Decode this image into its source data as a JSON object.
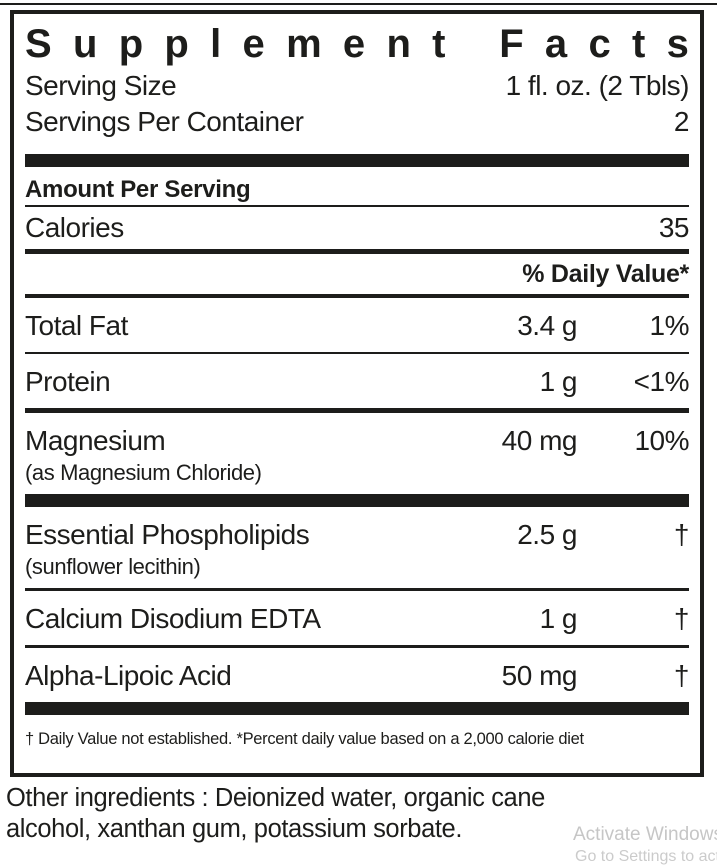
{
  "label": {
    "title": "Supplement Facts",
    "serving_size_label": "Serving Size",
    "serving_size_value": "1 fl. oz. (2 Tbls)",
    "servings_per_container_label": "Servings Per Container",
    "servings_per_container_value": "2",
    "amount_per_serving_header": "Amount Per Serving",
    "calories_label": "Calories",
    "calories_value": "35",
    "daily_value_header": "% Daily Value*",
    "rows": [
      {
        "name": "Total Fat",
        "sub": "",
        "amount": "3.4 g",
        "dv": "1%"
      },
      {
        "name": "Protein",
        "sub": "",
        "amount": "1 g",
        "dv": "<1%"
      },
      {
        "name": "Magnesium",
        "sub": "(as Magnesium Chloride)",
        "amount": "40 mg",
        "dv": "10%"
      },
      {
        "name": "Essential Phospholipids",
        "sub": "(sunflower lecithin)",
        "amount": "2.5 g",
        "dv": "†"
      },
      {
        "name": "Calcium Disodium EDTA",
        "sub": "",
        "amount": "1 g",
        "dv": "†"
      },
      {
        "name": "Alpha-Lipoic Acid",
        "sub": "",
        "amount": "50 mg",
        "dv": "†"
      }
    ],
    "footnote": "† Daily Value not established. *Percent daily value based on a 2,000 calorie diet",
    "other_ingredients_line1": "Other ingredients : Deionized water, organic cane",
    "other_ingredients_line2": "alcohol, xanthan gum, potassium sorbate."
  },
  "watermark": {
    "line1": "Activate Windows",
    "line2": "Go to Settings to activ"
  },
  "colors": {
    "text": "#1d1d1b",
    "background": "#ffffff",
    "watermark": "#c6c6c6"
  }
}
